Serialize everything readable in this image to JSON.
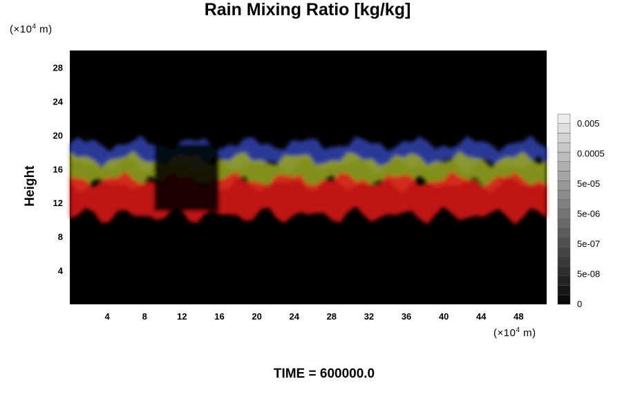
{
  "chart_data": {
    "type": "heatmap",
    "title": "Rain Mixing Ratio [kg/kg]",
    "ylabel": "Height",
    "x_unit": {
      "prefix": "(×10",
      "exp": "4",
      "suffix": " m)"
    },
    "y_unit": {
      "prefix": "(×10",
      "exp": "4",
      "suffix": " m)"
    },
    "xlim": [
      0,
      51
    ],
    "ylim": [
      0,
      30
    ],
    "x_ticks": [
      4,
      8,
      12,
      16,
      20,
      24,
      28,
      32,
      36,
      40,
      44,
      48
    ],
    "y_ticks": [
      4,
      8,
      12,
      16,
      20,
      24,
      28
    ],
    "colorbar": {
      "labels": [
        "0.005",
        "0.0005",
        "5e-05",
        "5e-06",
        "5e-07",
        "5e-08",
        "0"
      ],
      "levels": 20
    },
    "bands": [
      {
        "name": "blue",
        "color": "#3a4cc8",
        "bottom": 16.5,
        "top": 19.0
      },
      {
        "name": "yellow",
        "color": "#9aa820",
        "bottom": 14.2,
        "top": 17.2
      },
      {
        "name": "red",
        "color": "#e01a1a",
        "bottom": 10.5,
        "top": 14.8
      }
    ],
    "footer": "TIME = 600000.0"
  }
}
